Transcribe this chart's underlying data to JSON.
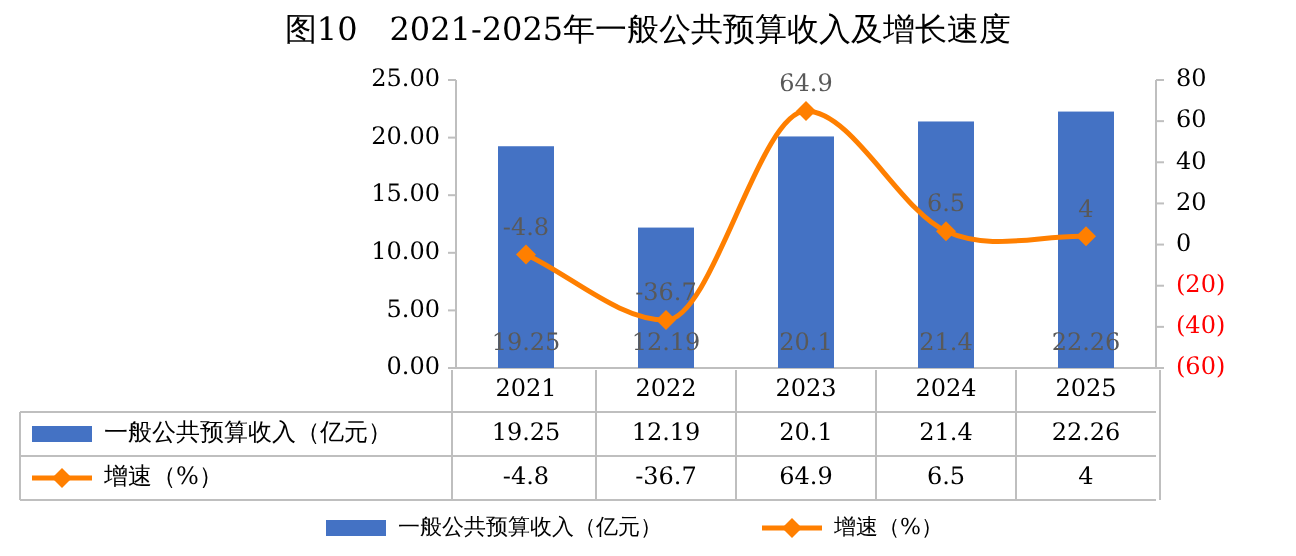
{
  "chart_data": {
    "type": "bar",
    "title": "图10　2021-2025年一般公共预算收入及增长速度",
    "categories": [
      "2021",
      "2022",
      "2023",
      "2024",
      "2025"
    ],
    "series": [
      {
        "name": "一般公共预算收入（亿元）",
        "color": "#4472c4",
        "values": [
          19.25,
          12.19,
          20.1,
          21.4,
          22.26
        ]
      },
      {
        "name": "增速（%）",
        "type": "line",
        "axis": "y2",
        "color": "#ff7f00",
        "values": [
          -4.8,
          -36.7,
          64.9,
          6.5,
          4
        ]
      }
    ],
    "annotations": [
      "19.25",
      "12.19",
      "20.1",
      "21.4",
      "22.26",
      "-4.8",
      "-36.7",
      "64.9",
      "6.5",
      "4"
    ],
    "ylim": [
      0,
      25
    ],
    "yticks": [
      {
        "value": 0,
        "label": "0.00"
      },
      {
        "value": 5,
        "label": "5.00"
      },
      {
        "value": 10,
        "label": "10.00"
      },
      {
        "value": 15,
        "label": "15.00"
      },
      {
        "value": 20,
        "label": "20.00"
      },
      {
        "value": 25,
        "label": "25.00"
      }
    ],
    "y2lim": [
      -60,
      80
    ],
    "y2ticks": [
      {
        "value": -60,
        "label": "(60)"
      },
      {
        "value": -40,
        "label": "(40)"
      },
      {
        "value": -20,
        "label": "(20)"
      },
      0,
      20,
      40,
      60,
      80
    ],
    "data_labels": true,
    "legend": "bottom",
    "marker": "diamond",
    "line_style": "solid"
  }
}
